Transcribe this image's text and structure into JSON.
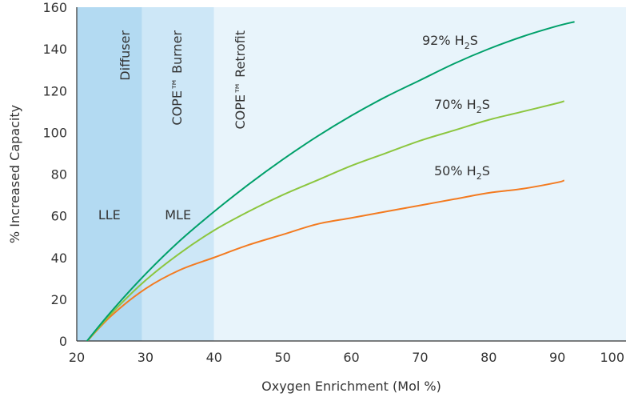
{
  "chart_data": {
    "type": "line",
    "xlabel": "Oxygen Enrichment (Mol %)",
    "ylabel": "% Increased Capacity",
    "xlim": [
      20,
      100
    ],
    "ylim": [
      0,
      160
    ],
    "xticks": [
      20,
      30,
      40,
      50,
      60,
      70,
      80,
      90,
      100
    ],
    "yticks": [
      0,
      20,
      40,
      60,
      80,
      100,
      120,
      140,
      160
    ],
    "grid": false,
    "legend": "inline labels at line ends",
    "regions": [
      {
        "name": "LLE",
        "technology": "Diffuser",
        "x_start": 20,
        "x_end": 29.5,
        "color": "#b3daf2"
      },
      {
        "name": "MLE",
        "technology": "COPE™ Burner",
        "x_start": 29.5,
        "x_end": 40,
        "color": "#cde7f7"
      },
      {
        "name": "",
        "technology": "COPE™ Retrofit",
        "x_start": 40,
        "x_end": 100,
        "color": "#e8f4fb"
      }
    ],
    "series": [
      {
        "name": "92% H2S",
        "label_main": "92% H",
        "label_sub": "2",
        "label_end": "S",
        "color": "#00a06a",
        "x": [
          21,
          25,
          30,
          35,
          40,
          45,
          50,
          55,
          60,
          65,
          70,
          75,
          80,
          85,
          90,
          92.5
        ],
        "y": [
          -2,
          14,
          32,
          48,
          62,
          75,
          87,
          98,
          108,
          117,
          125,
          133,
          140,
          146,
          151,
          153
        ]
      },
      {
        "name": "70% H2S",
        "label_main": "70% H",
        "label_sub": "2",
        "label_end": "S",
        "color": "#8cc63f",
        "x": [
          21,
          25,
          30,
          35,
          40,
          45,
          50,
          55,
          60,
          65,
          70,
          75,
          80,
          85,
          90,
          91
        ],
        "y": [
          -2,
          13,
          29,
          42,
          53,
          62,
          70,
          77,
          84,
          90,
          96,
          101,
          106,
          110,
          114,
          115
        ]
      },
      {
        "name": "50% H2S",
        "label_main": "50% H",
        "label_sub": "2",
        "label_end": "S",
        "color": "#f37b21",
        "x": [
          21,
          25,
          30,
          35,
          40,
          45,
          50,
          55,
          60,
          65,
          70,
          75,
          80,
          85,
          90,
          91
        ],
        "y": [
          -2,
          12,
          25,
          34,
          40,
          46,
          51,
          56,
          59,
          62,
          65,
          68,
          71,
          73,
          76,
          77
        ]
      }
    ]
  }
}
